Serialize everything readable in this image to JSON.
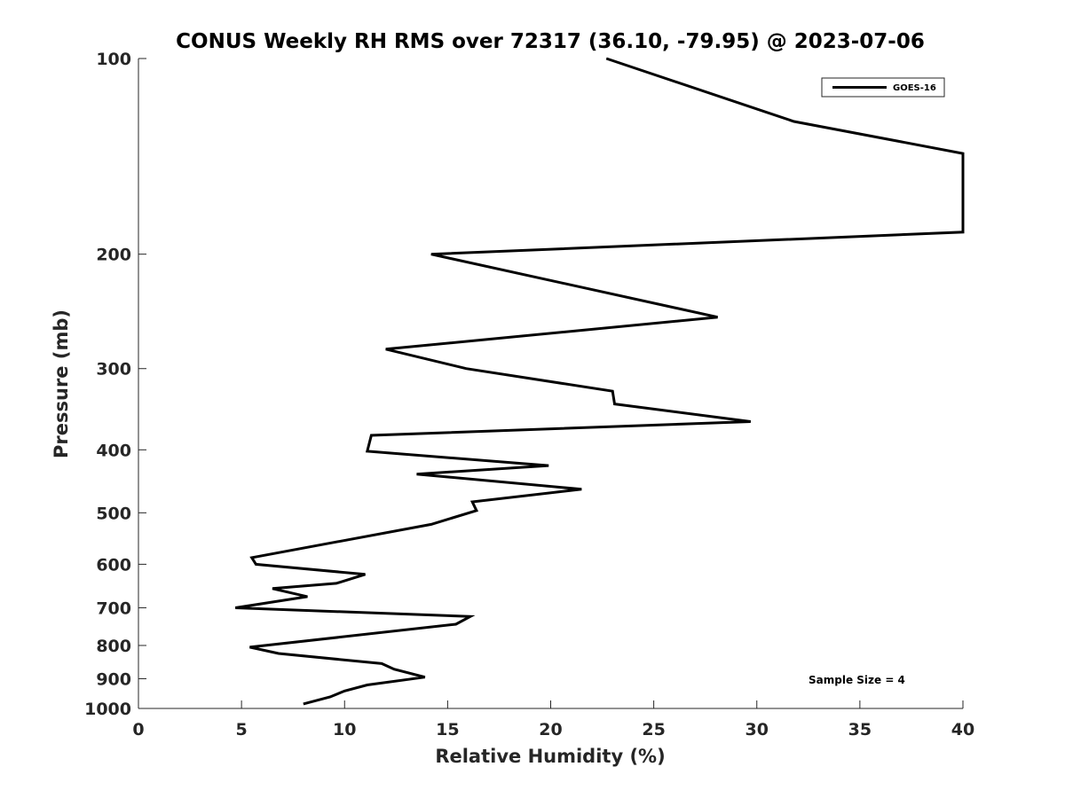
{
  "chart_data": {
    "type": "line",
    "title": "CONUS Weekly RH RMS over 72317 (36.10, -79.95) @ 2023-07-06",
    "xlabel": "Relative Humidity (%)",
    "ylabel": "Pressure (mb)",
    "xlim": [
      0,
      40
    ],
    "ylim": [
      100,
      1000
    ],
    "yscale": "log",
    "yreversed": true,
    "grid": false,
    "legend_position": "top-right",
    "x_ticks": [
      "0",
      "5",
      "10",
      "15",
      "20",
      "25",
      "30",
      "35",
      "40"
    ],
    "y_ticks": [
      "100",
      "200",
      "300",
      "400",
      "500",
      "600",
      "700",
      "800",
      "900",
      "1000"
    ],
    "annotation": "Sample Size = 4",
    "series": [
      {
        "name": "GOES-16",
        "color": "#000000",
        "points": [
          [
            22.7,
            100
          ],
          [
            31.8,
            125
          ],
          [
            40.0,
            140
          ],
          [
            40.0,
            185
          ],
          [
            14.2,
            200
          ],
          [
            28.1,
            250
          ],
          [
            12.0,
            280
          ],
          [
            15.9,
            300
          ],
          [
            23.0,
            325
          ],
          [
            23.1,
            340
          ],
          [
            29.7,
            362
          ],
          [
            11.3,
            380
          ],
          [
            11.1,
            402
          ],
          [
            19.9,
            423
          ],
          [
            13.5,
            436
          ],
          [
            21.5,
            460
          ],
          [
            16.2,
            481
          ],
          [
            16.4,
            496
          ],
          [
            14.2,
            521
          ],
          [
            5.5,
            586
          ],
          [
            5.7,
            600
          ],
          [
            11.0,
            622
          ],
          [
            9.6,
            642
          ],
          [
            6.5,
            654
          ],
          [
            8.2,
            673
          ],
          [
            4.7,
            700
          ],
          [
            16.1,
            722
          ],
          [
            15.4,
            742
          ],
          [
            5.4,
            805
          ],
          [
            6.8,
            823
          ],
          [
            11.8,
            853
          ],
          [
            12.4,
            870
          ],
          [
            13.9,
            895
          ],
          [
            11.1,
            920
          ],
          [
            10.0,
            940
          ],
          [
            9.3,
            960
          ],
          [
            8.0,
            984
          ]
        ]
      }
    ]
  }
}
